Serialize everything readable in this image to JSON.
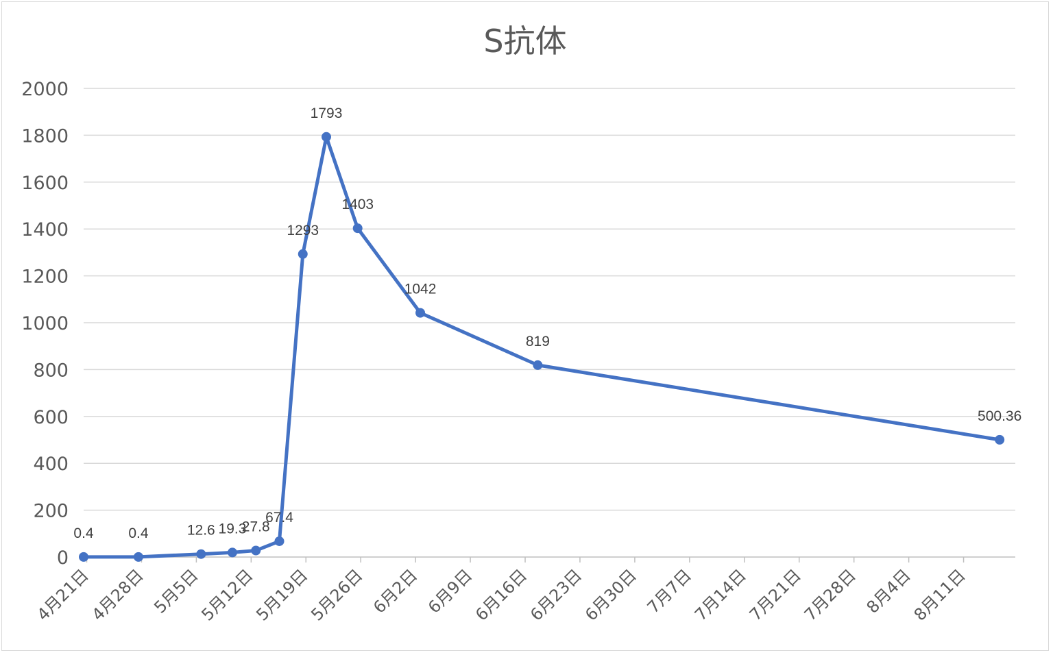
{
  "chart_data": {
    "type": "line",
    "title": "S抗体",
    "xlabel": "",
    "ylabel": "",
    "ylim": [
      0,
      2000
    ],
    "y_ticks": [
      0,
      200,
      400,
      600,
      800,
      1000,
      1200,
      1400,
      1600,
      1800,
      2000
    ],
    "x_range": [
      "2021-04-21",
      "2021-08-18"
    ],
    "x_tick_labels": [
      "4月21日",
      "4月28日",
      "5月5日",
      "5月12日",
      "5月19日",
      "5月26日",
      "6月2日",
      "6月9日",
      "6月16日",
      "6月23日",
      "6月30日",
      "7月7日",
      "7月14日",
      "7月21日",
      "7月28日",
      "8月4日",
      "8月11日"
    ],
    "grid": true,
    "legend": "none",
    "colors": {
      "line": "#4472c4",
      "grid": "#d9d9d9"
    },
    "series": [
      {
        "points": [
          {
            "x": "2021-04-21",
            "y": 0.4,
            "label": "0.4"
          },
          {
            "x": "2021-04-28",
            "y": 0.4,
            "label": "0.4"
          },
          {
            "x": "2021-05-06",
            "y": 12.6,
            "label": "12.6"
          },
          {
            "x": "2021-05-10",
            "y": 19.3,
            "label": "19.3"
          },
          {
            "x": "2021-05-13",
            "y": 27.8,
            "label": "27.8"
          },
          {
            "x": "2021-05-16",
            "y": 67.4,
            "label": "67.4"
          },
          {
            "x": "2021-05-19",
            "y": 1293,
            "label": "1293"
          },
          {
            "x": "2021-05-22",
            "y": 1793,
            "label": "1793"
          },
          {
            "x": "2021-05-26",
            "y": 1403,
            "label": "1403"
          },
          {
            "x": "2021-06-03",
            "y": 1042,
            "label": "1042"
          },
          {
            "x": "2021-06-18",
            "y": 819,
            "label": "819"
          },
          {
            "x": "2021-08-16",
            "y": 500.36,
            "label": "500.36"
          }
        ]
      }
    ]
  }
}
